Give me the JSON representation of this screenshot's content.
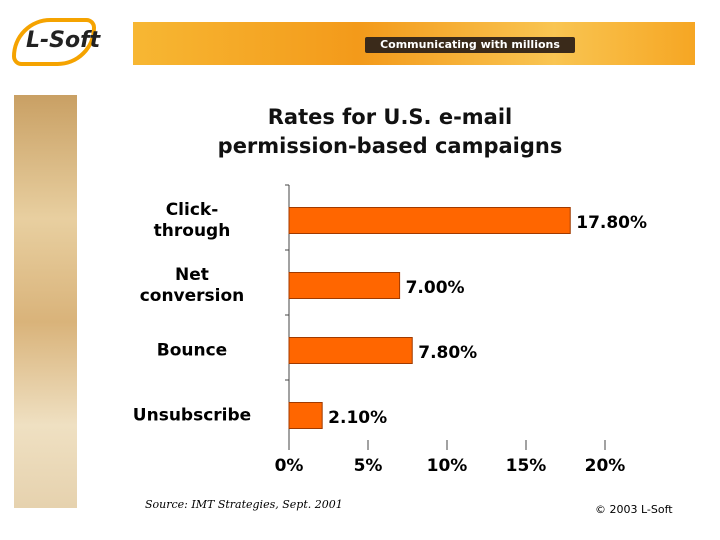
{
  "header": {
    "logo": "L-Soft",
    "tagline": "Communicating with millions"
  },
  "chart_data": {
    "type": "bar",
    "orientation": "horizontal",
    "title": "Rates for U.S. e-mail\npermission-based campaigns",
    "categories": [
      "Click-\nthrough",
      "Net\nconversion",
      "Bounce",
      "Unsubscribe"
    ],
    "values": [
      17.8,
      7.0,
      7.8,
      2.1
    ],
    "value_labels": [
      "17.80%",
      "7.00%",
      "7.80%",
      "2.10%"
    ],
    "color": "#ff6600",
    "xlim": [
      0,
      20
    ],
    "xticks": [
      {
        "value": 0,
        "label": "0%"
      },
      {
        "value": 5,
        "label": "5%"
      },
      {
        "value": 10,
        "label": "10%"
      },
      {
        "value": 15,
        "label": "15%"
      },
      {
        "value": 20,
        "label": "20%"
      }
    ]
  },
  "footer": {
    "source": "Source: IMT Strategies, Sept. 2001",
    "copyright": "© 2003 L-Soft"
  }
}
